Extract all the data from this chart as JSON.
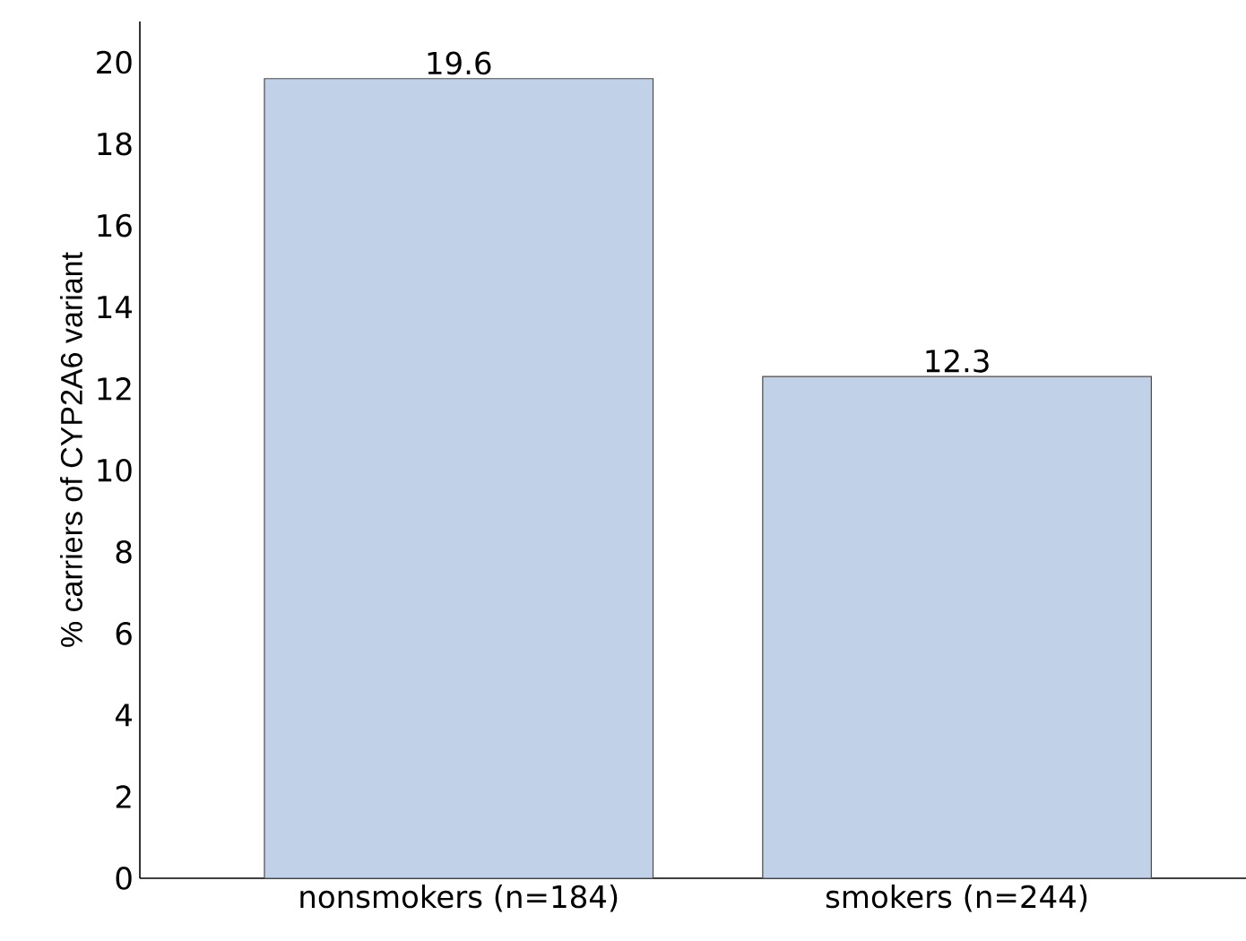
{
  "chart_data": {
    "type": "bar",
    "ylabel": "% carriers of CYP2A6 variant",
    "categories": [
      "nonsmokers (n=184)",
      "smokers (n=244)"
    ],
    "values": [
      19.6,
      12.3
    ],
    "color": "#c1d1e7",
    "ylim": [
      0,
      21
    ],
    "yticks": [
      0,
      2,
      4,
      6,
      8,
      10,
      12,
      14,
      16,
      18,
      20
    ],
    "data_labels": true
  }
}
